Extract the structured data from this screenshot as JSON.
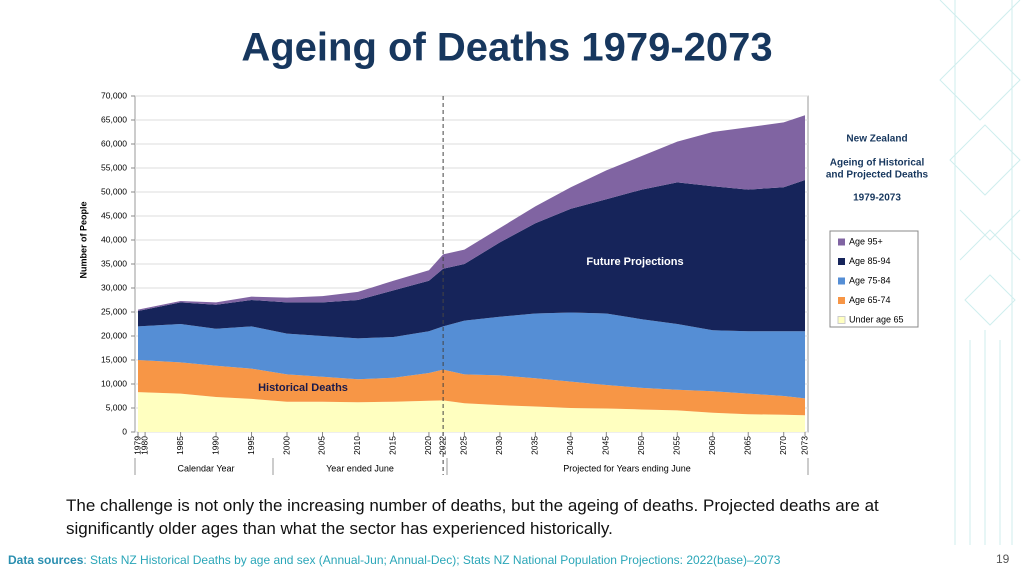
{
  "slide": {
    "body": "The challenge is not only the increasing number of deaths, but the ageing of deaths. Projected deaths are at significantly older ages than what the sector has experienced historically.",
    "footer_label": "Data sources",
    "footer_text": ": Stats NZ Historical Deaths by age and sex (Annual-Jun; Annual-Dec); Stats NZ National Population Projections: 2022(base)–2073",
    "page_number": "19"
  },
  "chart_data": {
    "type": "area",
    "stacked": true,
    "title": "Ageing of Deaths 1979-2073",
    "y_label": "Number of People",
    "side_title": "New Zealand",
    "side_subtitle": [
      "Ageing of Historical",
      "and Projected Deaths"
    ],
    "side_range": "1979-2073",
    "annotations": [
      "Future Projections",
      "Historical Deaths"
    ],
    "x_groups": [
      "Calendar Year",
      "Year ended June",
      "Projected for Years ending June"
    ],
    "reference_line": {
      "x": 2022,
      "style": "dashed"
    },
    "x": [
      1979,
      1985,
      1990,
      1995,
      2000,
      2005,
      2010,
      2015,
      2020,
      2022,
      2025,
      2030,
      2035,
      2040,
      2045,
      2050,
      2055,
      2060,
      2065,
      2070,
      2073
    ],
    "series": [
      {
        "name": "Under age 65",
        "color": "#ffffc0",
        "values": [
          8300,
          8000,
          7300,
          6900,
          6300,
          6300,
          6200,
          6300,
          6500,
          6600,
          6000,
          5600,
          5300,
          5000,
          4900,
          4700,
          4500,
          4000,
          3700,
          3600,
          3500
        ]
      },
      {
        "name": "Age 65-74",
        "color": "#f79646",
        "values": [
          6700,
          6500,
          6500,
          6300,
          5700,
          5200,
          4800,
          5000,
          5800,
          6400,
          6000,
          6200,
          5900,
          5500,
          4900,
          4500,
          4300,
          4500,
          4300,
          3900,
          3500
        ]
      },
      {
        "name": "Age 75-84",
        "color": "#558ed5",
        "values": [
          7000,
          8000,
          7700,
          8800,
          8500,
          8500,
          8500,
          8500,
          8700,
          9000,
          11200,
          12200,
          13500,
          14400,
          14900,
          14300,
          13700,
          12700,
          13000,
          13500,
          14000
        ]
      },
      {
        "name": "Age 85-94",
        "color": "#16245a",
        "values": [
          3200,
          4500,
          5000,
          5500,
          6500,
          7000,
          8000,
          9700,
          10500,
          12000,
          11800,
          15500,
          18800,
          21600,
          23800,
          27000,
          29500,
          30000,
          29500,
          30000,
          31500
        ]
      },
      {
        "name": "Age 95+",
        "color": "#8064a2",
        "values": [
          300,
          300,
          500,
          700,
          1000,
          1300,
          1700,
          2000,
          2200,
          3000,
          3000,
          3000,
          3500,
          4500,
          6000,
          7000,
          8500,
          11300,
          13000,
          13500,
          13500
        ]
      }
    ],
    "xlim": [
      1979,
      2073
    ],
    "xticks": [
      1979,
      1980,
      1985,
      1990,
      1995,
      2000,
      2005,
      2010,
      2015,
      2020,
      2022,
      2025,
      2030,
      2035,
      2040,
      2045,
      2050,
      2055,
      2060,
      2065,
      2070,
      2073
    ],
    "ylim": [
      0,
      70000
    ],
    "yticks": [
      0,
      {
        "value": 5000,
        "label": "5,000"
      },
      {
        "value": 10000,
        "label": "10,000"
      },
      {
        "value": 15000,
        "label": "15,000"
      },
      {
        "value": 20000,
        "label": "20,000"
      },
      {
        "value": 25000,
        "label": "25,000"
      },
      {
        "value": 30000,
        "label": "30,000"
      },
      {
        "value": 35000,
        "label": "35,000"
      },
      {
        "value": 40000,
        "label": "40,000"
      },
      {
        "value": 45000,
        "label": "45,000"
      },
      {
        "value": 50000,
        "label": "50,000"
      },
      {
        "value": 55000,
        "label": "55,000"
      },
      {
        "value": 60000,
        "label": "60,000"
      },
      {
        "value": 65000,
        "label": "65,000"
      },
      {
        "value": 70000,
        "label": "70,000"
      }
    ],
    "grid": true
  }
}
